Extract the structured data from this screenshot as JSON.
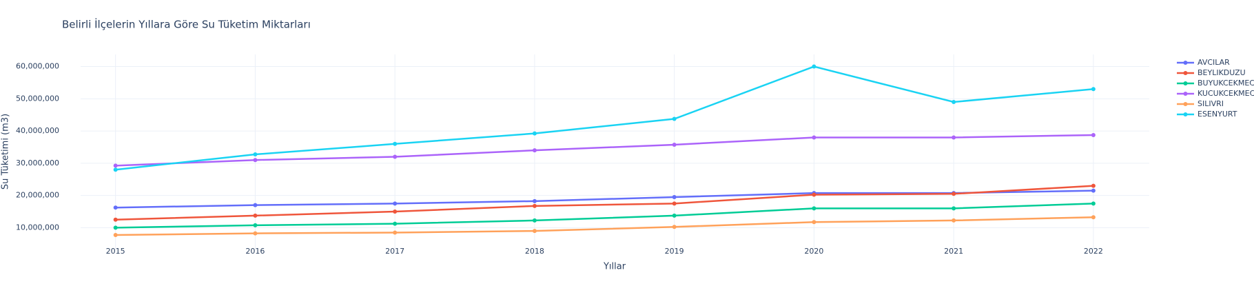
{
  "chart_data": {
    "type": "line",
    "title": "Belirli İlçelerin Yıllara Göre Su Tüketim Miktarları",
    "x_label": "Yıllar",
    "y_label": "Su Tüketimi (m3)",
    "x": [
      2015,
      2016,
      2017,
      2018,
      2019,
      2020,
      2021,
      2022
    ],
    "series": [
      {
        "name": "AVCILAR",
        "color": "#636efa",
        "values": [
          16250000,
          17000000,
          17500000,
          18250000,
          19500000,
          20750000,
          20750000,
          21500000
        ]
      },
      {
        "name": "BEYLIKDUZU",
        "color": "#ef553b",
        "values": [
          12500000,
          13750000,
          15000000,
          16750000,
          17500000,
          20250000,
          20500000,
          23000000
        ]
      },
      {
        "name": "BUYUKCEKMECE",
        "color": "#00cc96",
        "values": [
          10000000,
          10750000,
          11250000,
          12250000,
          13750000,
          16000000,
          16000000,
          17500000
        ]
      },
      {
        "name": "KUCUKCEKMECE",
        "color": "#ab63fa",
        "values": [
          29250000,
          31000000,
          32000000,
          34000000,
          35750000,
          38000000,
          38000000,
          38750000
        ]
      },
      {
        "name": "SILIVRI",
        "color": "#ffa15a",
        "values": [
          7750000,
          8250000,
          8500000,
          9000000,
          10250000,
          11750000,
          12250000,
          13250000
        ]
      },
      {
        "name": "ESENYURT",
        "color": "#19d3f3",
        "values": [
          28000000,
          32750000,
          36000000,
          39250000,
          43750000,
          60000000,
          49000000,
          53000000
        ]
      }
    ],
    "xlim": [
      2014.75,
      2022.4
    ],
    "ylim": [
      3250000,
      63750000
    ],
    "xticks": [
      2015,
      2016,
      2017,
      2018,
      2019,
      2020,
      2021,
      2022
    ],
    "yticks": [
      {
        "value": 10000000,
        "label": "10,000,000"
      },
      {
        "value": 20000000,
        "label": "20,000,000"
      },
      {
        "value": 30000000,
        "label": "30,000,000"
      },
      {
        "value": 40000000,
        "label": "40,000,000"
      },
      {
        "value": 50000000,
        "label": "50,000,000"
      },
      {
        "value": 60000000,
        "label": "60,000,000"
      }
    ],
    "grid": true,
    "legend_position": "right"
  }
}
